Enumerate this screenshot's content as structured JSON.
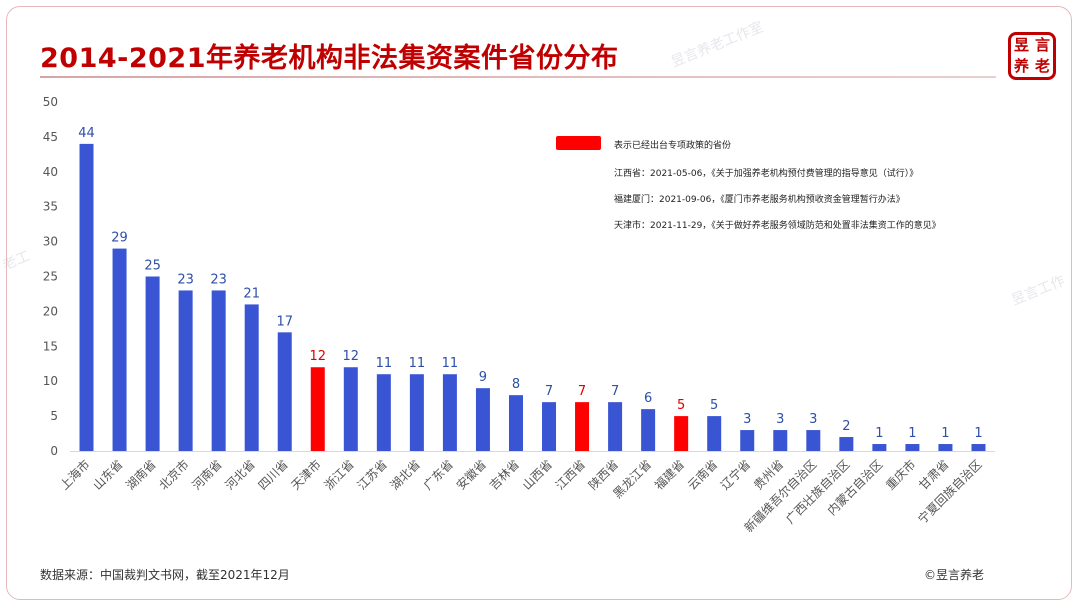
{
  "title": "2014-2021年养老机构非法集资案件省份分布",
  "seal_chars": [
    "昱",
    "言",
    "养",
    "老"
  ],
  "watermark": "昱言养老工作室",
  "watermark_short": "老工",
  "watermark_side": "昱言工作",
  "legend": {
    "swatch_label": "表示已经出台专项政策的省份",
    "swatch_color": "#ff0000",
    "notes": [
      "江西省：2021-05-06，《关于加强养老机构预付费管理的指导意见（试行）》",
      "福建厦门：2021-09-06，《厦门市养老服务机构预收资金管理暂行办法》",
      "天津市：2021-11-29，《关于做好养老服务领域防范和处置非法集资工作的意见》"
    ]
  },
  "source": "数据来源：中国裁判文书网，截至2021年12月",
  "copyright": "©昱言养老",
  "colors": {
    "bar": "#3a55d4",
    "highlight": "#ff0000",
    "label_blue": "#2f4fa8",
    "label_red": "#e00000"
  },
  "chart_data": {
    "type": "bar",
    "title": "2014-2021年养老机构非法集资案件省份分布",
    "xlabel": "",
    "ylabel": "",
    "ylim": [
      0,
      50
    ],
    "yticks": [
      0,
      5,
      10,
      15,
      20,
      25,
      30,
      35,
      40,
      45,
      50
    ],
    "grid": false,
    "categories": [
      "上海市",
      "山东省",
      "湖南省",
      "北京市",
      "河南省",
      "河北省",
      "四川省",
      "天津市",
      "浙江省",
      "江苏省",
      "湖北省",
      "广东省",
      "安徽省",
      "吉林省",
      "山西省",
      "江西省",
      "陕西省",
      "黑龙江省",
      "福建省",
      "云南省",
      "辽宁省",
      "贵州省",
      "新疆维吾尔自治区",
      "广西壮族自治区",
      "内蒙古自治区",
      "重庆市",
      "甘肃省",
      "宁夏回族自治区"
    ],
    "values": [
      44,
      29,
      25,
      23,
      23,
      21,
      17,
      12,
      12,
      11,
      11,
      11,
      9,
      8,
      7,
      7,
      7,
      6,
      5,
      5,
      3,
      3,
      3,
      2,
      1,
      1,
      1,
      1
    ],
    "highlighted": [
      "天津市",
      "江西省",
      "福建省"
    ]
  }
}
